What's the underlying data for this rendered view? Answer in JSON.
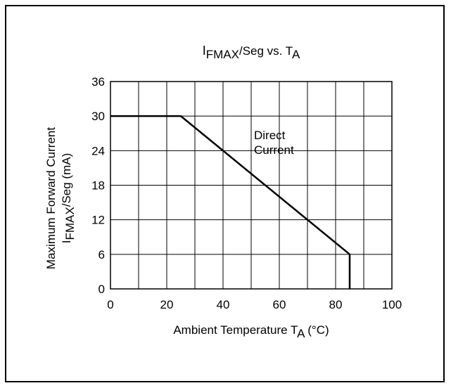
{
  "chart_data": {
    "type": "line",
    "title": {
      "main": "I",
      "main_sub": "FMAX",
      "mid": "/Seg vs. T",
      "end_sub": "A"
    },
    "xlabel": {
      "main": "Ambient Temperature T",
      "sub": "A",
      "end": " (°C)"
    },
    "ylabel": {
      "line1": "Maximum Forward Current",
      "line2_main": "I",
      "line2_sub": "FMAX",
      "line2_end": "/Seg (mA)"
    },
    "xlim": [
      0,
      100
    ],
    "ylim": [
      0,
      36
    ],
    "x_ticks": [
      0,
      20,
      40,
      60,
      80,
      100
    ],
    "y_ticks": [
      0,
      6,
      12,
      18,
      24,
      30,
      36
    ],
    "x_grid": [
      0,
      10,
      20,
      30,
      40,
      50,
      60,
      70,
      80,
      90,
      100
    ],
    "y_grid": [
      0,
      6,
      12,
      18,
      24,
      30,
      36
    ],
    "grid": true,
    "series": [
      {
        "x": [
          0,
          25,
          85,
          85
        ],
        "y": [
          30,
          30,
          6,
          0
        ]
      }
    ],
    "annotations": [
      {
        "lines": [
          "Direct",
          "Current"
        ],
        "x": 51,
        "y": 26
      }
    ],
    "colors": {
      "line": "#000000",
      "grid": "#000000",
      "background": "#ffffff"
    }
  }
}
